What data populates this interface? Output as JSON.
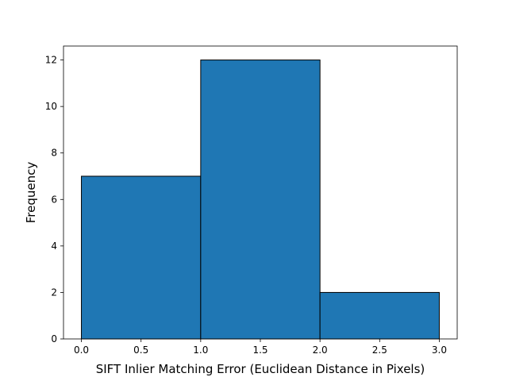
{
  "chart_data": {
    "type": "histogram",
    "title": "",
    "xlabel": "SIFT Inlier Matching Error (Euclidean Distance in Pixels)",
    "ylabel": "Frequency",
    "bins": [
      {
        "start": 0.0,
        "end": 1.0,
        "count": 7
      },
      {
        "start": 1.0,
        "end": 2.0,
        "count": 12
      },
      {
        "start": 2.0,
        "end": 3.0,
        "count": 2
      }
    ],
    "xlim": [
      -0.15,
      3.15
    ],
    "ylim": [
      0,
      12.6
    ],
    "xticks": [
      0.0,
      0.5,
      1.0,
      1.5,
      2.0,
      2.5,
      3.0
    ],
    "xtick_labels": [
      "0.0",
      "0.5",
      "1.0",
      "1.5",
      "2.0",
      "2.5",
      "3.0"
    ],
    "yticks": [
      0,
      2,
      4,
      6,
      8,
      10,
      12
    ],
    "ytick_labels": [
      "0",
      "2",
      "4",
      "6",
      "8",
      "10",
      "12"
    ],
    "bar_color": "#1f77b4",
    "edge_color": "#000000",
    "grid": false,
    "legend": "none"
  }
}
